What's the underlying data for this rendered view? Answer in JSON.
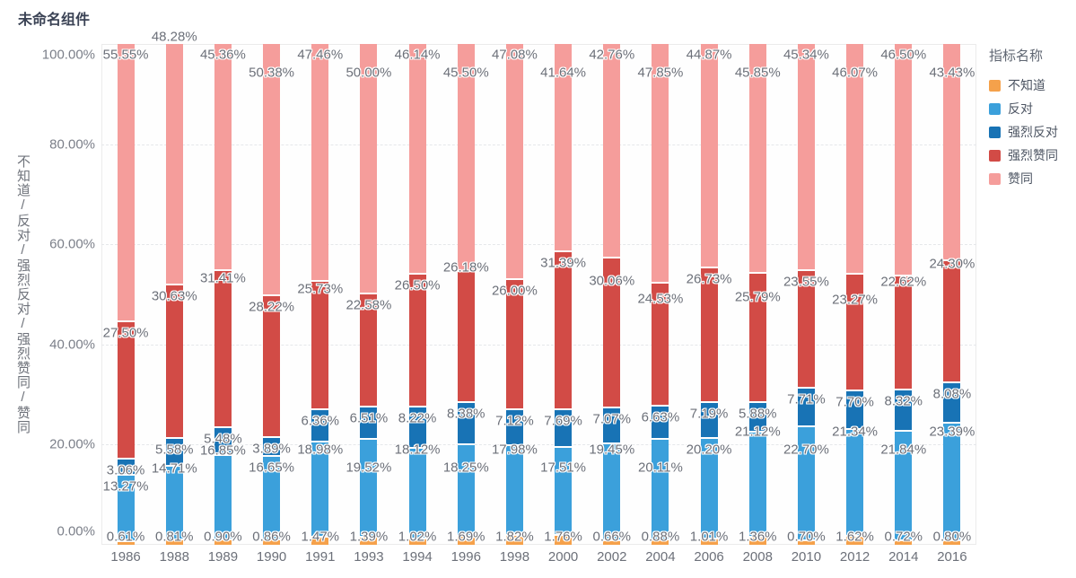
{
  "title": "未命名组件",
  "legend": {
    "title": "指标名称"
  },
  "chart_data": {
    "type": "bar",
    "stack": "percent",
    "grid": true,
    "legend_position": "right",
    "title": "未命名组件",
    "xlabel": "",
    "ylabel": "不知道/反对/强烈反对/强烈赞同/赞同",
    "ylim": [
      0,
      100
    ],
    "yticks": [
      {
        "value": 0,
        "label": "0.00%"
      },
      {
        "value": 20,
        "label": "20.00%"
      },
      {
        "value": 40,
        "label": "40.00%"
      },
      {
        "value": 60,
        "label": "60.00%"
      },
      {
        "value": 80,
        "label": "80.00%"
      },
      {
        "value": 100,
        "label": "100.00%"
      }
    ],
    "categories": [
      "1986",
      "1988",
      "1989",
      "1990",
      "1991",
      "1993",
      "1994",
      "1996",
      "1998",
      "2000",
      "2002",
      "2004",
      "2006",
      "2008",
      "2010",
      "2012",
      "2014",
      "2016"
    ],
    "series": [
      {
        "name": "不知道",
        "color": "#F5A14B",
        "values": [
          0.61,
          0.81,
          0.9,
          0.86,
          1.47,
          1.39,
          1.02,
          1.69,
          1.82,
          1.76,
          0.66,
          0.88,
          1.01,
          1.36,
          0.7,
          1.62,
          0.72,
          0.8
        ]
      },
      {
        "name": "反对",
        "color": "#3BA0DB",
        "values": [
          13.27,
          14.71,
          16.85,
          16.65,
          18.98,
          19.52,
          18.12,
          18.25,
          17.98,
          17.51,
          19.45,
          20.11,
          20.2,
          21.12,
          22.7,
          21.34,
          21.84,
          23.39
        ]
      },
      {
        "name": "强烈反对",
        "color": "#1873B5",
        "values": [
          3.06,
          5.58,
          5.48,
          3.89,
          6.36,
          6.51,
          8.22,
          8.38,
          7.12,
          7.69,
          7.07,
          6.63,
          7.19,
          5.88,
          7.71,
          7.7,
          8.32,
          8.08
        ]
      },
      {
        "name": "强烈赞同",
        "color": "#D24B46",
        "values": [
          27.5,
          30.63,
          31.41,
          28.22,
          25.73,
          22.58,
          26.5,
          26.18,
          26.0,
          31.39,
          30.06,
          24.53,
          26.73,
          25.79,
          23.55,
          23.27,
          22.62,
          24.3
        ]
      },
      {
        "name": "赞同",
        "color": "#F59D9B",
        "values": [
          55.55,
          48.28,
          45.36,
          50.38,
          47.46,
          50.0,
          46.14,
          45.5,
          47.08,
          41.64,
          42.76,
          47.85,
          44.87,
          45.85,
          45.34,
          46.07,
          46.5,
          43.43
        ]
      }
    ]
  }
}
